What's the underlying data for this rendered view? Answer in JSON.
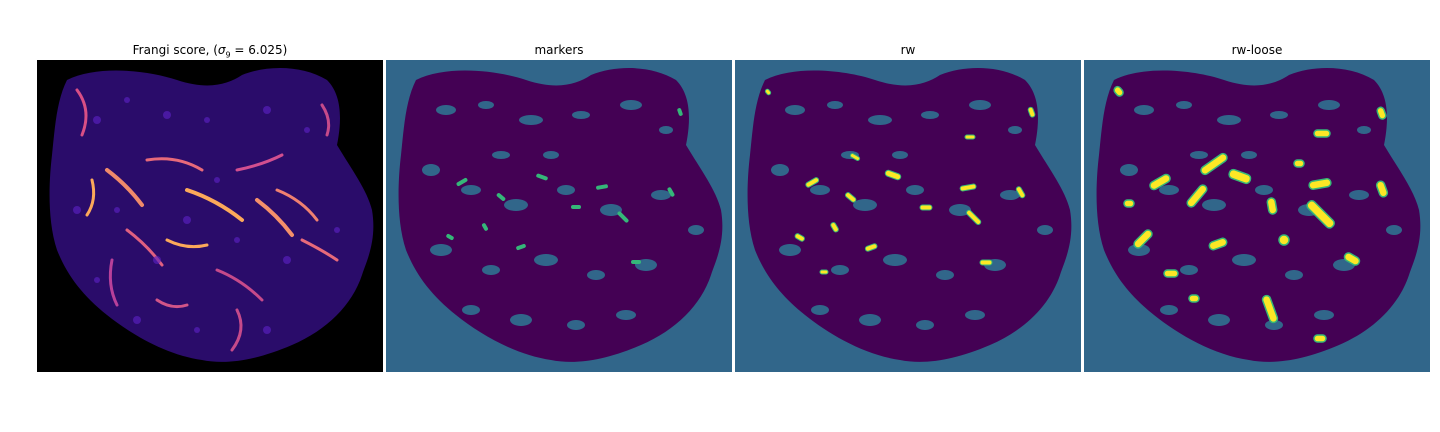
{
  "panels": [
    {
      "id": "frangi",
      "title_prefix": "Frangi score, (",
      "title_math": "σ",
      "title_sub": "9",
      "title_suffix": " = 6.025)",
      "background": "#000000",
      "tissue_color": "#3a1a9a",
      "highlight_colors": [
        "#6a1fb0",
        "#b53a9a",
        "#e8607a",
        "#fca95a"
      ]
    },
    {
      "id": "markers",
      "title": "markers",
      "background": "#31668a",
      "tissue_color": "#440154",
      "marker_color": "#35b779"
    },
    {
      "id": "rw",
      "title": "rw",
      "background": "#31668a",
      "tissue_color": "#440154",
      "marker_color": "#fde725",
      "marker_outline": "#35b779"
    },
    {
      "id": "rw-loose",
      "title": "rw-loose",
      "background": "#31668a",
      "tissue_color": "#440154",
      "marker_color": "#fde725",
      "marker_outline": "#35b779"
    }
  ]
}
